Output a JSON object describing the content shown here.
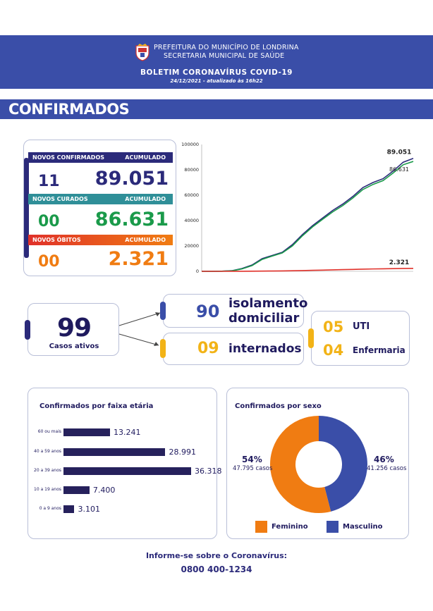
{
  "header": {
    "line1": "PREFEITURA DO MUNICÍPIO DE LONDRINA",
    "line2": "SECRETARIA MUNICIPAL DE SAÚDE",
    "title": "BOLETIM CORONAVÍRUS COVID-19",
    "date": "24/12/2021 - atualizado às 16h22"
  },
  "section_title": "CONFIRMADOS",
  "stats": {
    "confirmados": {
      "label": "NOVOS CONFIRMADOS",
      "acc_label": "ACUMULADO",
      "new": "11",
      "total": "89.051",
      "color": "#2b2a7a"
    },
    "curados": {
      "label": "NOVOS CURADOS",
      "acc_label": "ACUMULADO",
      "new": "00",
      "total": "86.631",
      "color": "#1a9a4a"
    },
    "obitos": {
      "label": "NOVOS ÓBITOS",
      "acc_label": "ACUMULADO",
      "new": "00",
      "total": "2.321",
      "color": "#f07c12"
    }
  },
  "ativos": {
    "value": "99",
    "label": "Casos ativos"
  },
  "isolamento": {
    "value": "90",
    "label_1": "isolamento",
    "label_2": "domiciliar"
  },
  "internados": {
    "value": "09",
    "label": "internados"
  },
  "leitos": {
    "uti_value": "05",
    "uti_label": "UTI",
    "enf_value": "04",
    "enf_label": "Enfermaria"
  },
  "faixa_etaria": {
    "title": "Confirmados por faixa etária"
  },
  "sexo": {
    "title": "Confirmados por sexo",
    "feminino": {
      "pct": "54%",
      "casos": "47.795 casos",
      "label": "Feminino",
      "color": "#f07c12"
    },
    "masculino": {
      "pct": "46%",
      "casos": "41.256 casos",
      "label": "Masculino",
      "color": "#3a4ea8"
    }
  },
  "footer": {
    "line1": "Informe-se sobre o Coronavírus:",
    "line2": "0800 400-1234"
  },
  "chart_data": [
    {
      "type": "line",
      "yticks": [
        "0",
        "20000",
        "40000",
        "60000",
        "80000",
        "100000"
      ],
      "ylim": [
        0,
        100000
      ],
      "x": [
        0,
        1,
        2,
        3,
        4,
        5,
        6,
        7,
        8,
        9,
        10,
        11,
        12,
        13,
        14,
        15,
        16,
        17,
        18,
        19,
        20,
        21
      ],
      "series": [
        {
          "color": "#2b2a7a",
          "end_label": "89.051",
          "values": [
            0,
            0,
            100,
            500,
            2200,
            5000,
            10000,
            12500,
            15000,
            21000,
            29000,
            36000,
            42000,
            48000,
            53000,
            59000,
            66000,
            70000,
            73000,
            79000,
            86000,
            89051
          ]
        },
        {
          "color": "#1a9a4a",
          "end_label": "86.631",
          "values": [
            0,
            0,
            80,
            400,
            1900,
            4500,
            9400,
            12000,
            14500,
            20000,
            28000,
            35000,
            41000,
            46800,
            51800,
            57800,
            64500,
            68500,
            71500,
            77500,
            84000,
            86631
          ]
        },
        {
          "color": "#e0312a",
          "end_label": "2.321",
          "values": [
            0,
            0,
            0,
            10,
            40,
            90,
            170,
            240,
            320,
            440,
            600,
            790,
            960,
            1150,
            1330,
            1520,
            1720,
            1870,
            1990,
            2130,
            2250,
            2321
          ]
        }
      ]
    },
    {
      "type": "bar",
      "categories": [
        "60 ou mais",
        "40 a 59 anos",
        "20 a 39 anos",
        "10 a 19 anos",
        "0 a 9 anos"
      ],
      "values": [
        13241,
        28991,
        36318,
        7400,
        3101
      ],
      "value_labels": [
        "13.241",
        "28.991",
        "36.318",
        "7.400",
        "3.101"
      ]
    },
    {
      "type": "pie",
      "categories": [
        "Feminino",
        "Masculino"
      ],
      "values": [
        54,
        46
      ]
    }
  ]
}
